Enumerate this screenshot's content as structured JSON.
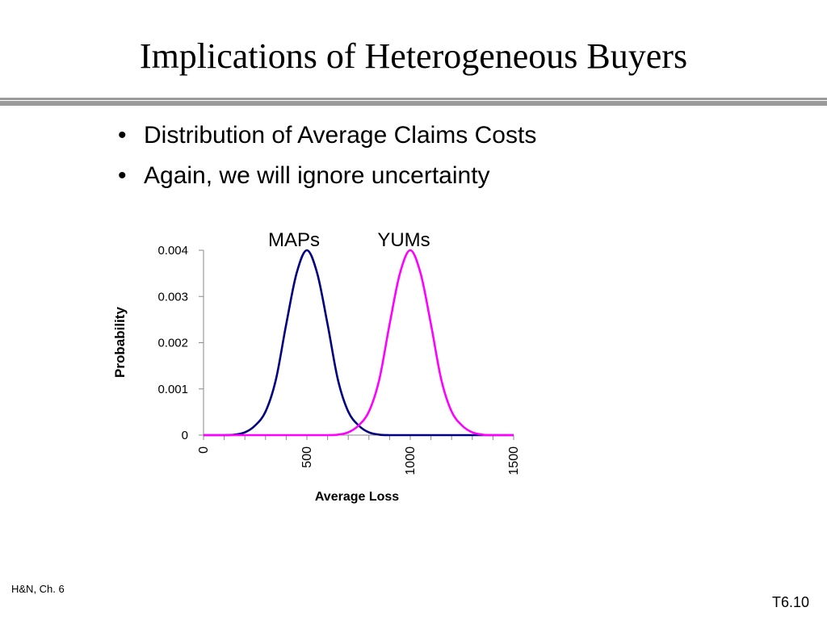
{
  "title": "Implications of Heterogeneous Buyers",
  "bullets": [
    "Distribution of Average Claims Costs",
    "Again, we will ignore uncertainty"
  ],
  "footer": {
    "left": "H&N, Ch. 6",
    "right": "T6.10"
  },
  "colors": {
    "maps": "#000080",
    "yums": "#ff00ff",
    "rule": "#9a9a9a"
  },
  "chart_data": {
    "type": "line",
    "xlabel": "Average Loss",
    "ylabel": "Probability",
    "xlim": [
      0,
      1500
    ],
    "ylim": [
      0,
      0.004
    ],
    "xticks": [
      0,
      500,
      1000,
      1500
    ],
    "yticks": [
      0,
      0.001,
      0.002,
      0.003,
      0.004
    ],
    "ytick_labels": [
      "0",
      "0.001",
      "0.002",
      "0.003",
      "0.004"
    ],
    "grid": false,
    "series": [
      {
        "name": "MAPs",
        "color": "#000080",
        "x": [
          0,
          100,
          150,
          200,
          250,
          300,
          350,
          400,
          450,
          500,
          550,
          600,
          650,
          700,
          750,
          800,
          850,
          900,
          1000,
          1500
        ],
        "y": [
          0,
          0,
          1e-05,
          6e-05,
          0.00021,
          0.00051,
          0.0012,
          0.0024,
          0.0035,
          0.004,
          0.0035,
          0.0024,
          0.0012,
          0.00051,
          0.00021,
          6e-05,
          1e-05,
          0,
          0,
          0
        ]
      },
      {
        "name": "YUMs",
        "color": "#ff00ff",
        "x": [
          0,
          500,
          600,
          650,
          700,
          750,
          800,
          850,
          900,
          950,
          1000,
          1050,
          1100,
          1150,
          1200,
          1250,
          1300,
          1350,
          1400,
          1500
        ],
        "y": [
          0,
          0,
          0,
          1e-05,
          6e-05,
          0.00021,
          0.00051,
          0.0012,
          0.0024,
          0.0035,
          0.004,
          0.0035,
          0.0024,
          0.0012,
          0.00051,
          0.00021,
          6e-05,
          1e-05,
          0,
          0
        ]
      }
    ]
  }
}
